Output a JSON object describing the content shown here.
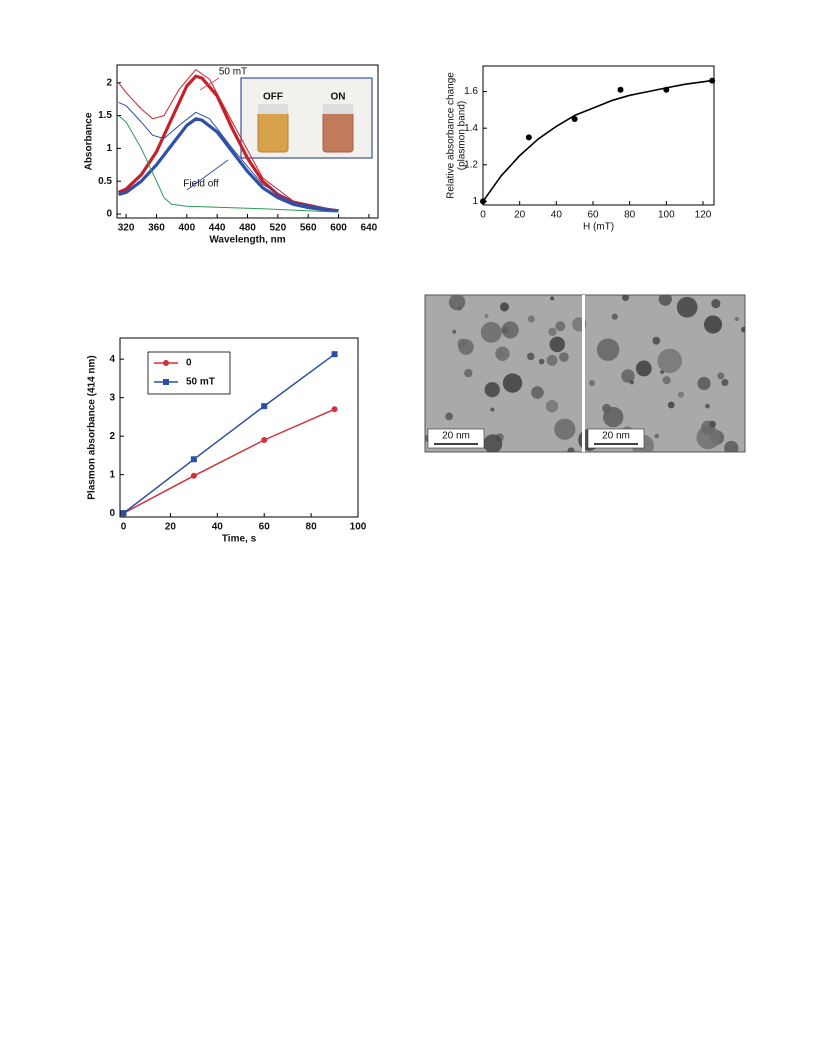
{
  "chart_data": [
    {
      "type": "line",
      "xlabel": "Wavelength, nm",
      "ylabel": "Absorbance",
      "xlim": [
        308,
        652
      ],
      "ylim": [
        -0.06,
        2.27
      ],
      "xticks": [
        320,
        360,
        400,
        440,
        480,
        520,
        560,
        600,
        640
      ],
      "yticks": [
        0,
        0.5,
        1,
        1.5,
        2
      ],
      "annotations": [
        "50 mT",
        "Field off"
      ],
      "inset_labels": [
        "OFF",
        "ON"
      ],
      "series": [
        {
          "color": "#c8202a",
          "width": 3.2,
          "x": [
            310,
            320,
            340,
            360,
            380,
            400,
            412,
            420,
            440,
            460,
            480,
            500,
            520,
            540,
            560,
            580,
            600
          ],
          "values": [
            0.33,
            0.38,
            0.6,
            0.95,
            1.45,
            1.95,
            2.1,
            2.07,
            1.8,
            1.3,
            0.85,
            0.5,
            0.3,
            0.18,
            0.12,
            0.08,
            0.05
          ]
        },
        {
          "color": "#2f4fa8",
          "width": 3.2,
          "x": [
            310,
            320,
            340,
            360,
            380,
            400,
            412,
            420,
            440,
            460,
            480,
            500,
            520,
            540,
            560,
            580,
            600
          ],
          "values": [
            0.3,
            0.33,
            0.5,
            0.75,
            1.05,
            1.35,
            1.45,
            1.43,
            1.25,
            0.95,
            0.65,
            0.4,
            0.25,
            0.15,
            0.1,
            0.07,
            0.05
          ]
        },
        {
          "color": "#c8202a",
          "width": 1,
          "x": [
            310,
            320,
            340,
            355,
            370,
            390,
            412,
            430,
            460,
            500,
            540,
            600
          ],
          "values": [
            2.0,
            1.85,
            1.6,
            1.45,
            1.5,
            1.9,
            2.2,
            2.05,
            1.4,
            0.55,
            0.2,
            0.05
          ]
        },
        {
          "color": "#2f4fa8",
          "width": 1,
          "x": [
            310,
            320,
            340,
            355,
            370,
            390,
            412,
            430,
            460,
            500,
            540,
            600
          ],
          "values": [
            1.7,
            1.65,
            1.4,
            1.2,
            1.15,
            1.35,
            1.55,
            1.45,
            1.0,
            0.45,
            0.18,
            0.05
          ]
        },
        {
          "color": "#2a9a55",
          "width": 1,
          "x": [
            310,
            320,
            340,
            360,
            370,
            380,
            400,
            450,
            500,
            600
          ],
          "values": [
            1.5,
            1.4,
            1.0,
            0.5,
            0.25,
            0.15,
            0.12,
            0.1,
            0.08,
            0.03
          ]
        }
      ]
    },
    {
      "type": "scatter",
      "xlabel": "H (mT)",
      "ylabel": [
        "Relative absorbance change",
        "(plasmon band)"
      ],
      "xlim": [
        0,
        126
      ],
      "ylim": [
        0.98,
        1.74
      ],
      "xticks": [
        0,
        20,
        40,
        60,
        80,
        100,
        120
      ],
      "yticks": [
        1,
        1.2,
        1.4,
        1.6
      ],
      "series": [
        {
          "color": "#000000",
          "style": "markers",
          "marker": "circle",
          "x": [
            0,
            25,
            50,
            75,
            100,
            125
          ],
          "values": [
            1,
            1.35,
            1.45,
            1.61,
            1.61,
            1.66
          ]
        },
        {
          "color": "#000000",
          "style": "line",
          "width": 1.6,
          "x": [
            0,
            10,
            20,
            30,
            40,
            50,
            60,
            70,
            80,
            90,
            100,
            110,
            125
          ],
          "values": [
            1,
            1.14,
            1.25,
            1.34,
            1.41,
            1.47,
            1.51,
            1.55,
            1.58,
            1.6,
            1.62,
            1.64,
            1.66
          ]
        }
      ]
    },
    {
      "type": "line",
      "xlabel": "Time, s",
      "ylabel": "Plasmon absorbance (414 nm)",
      "xlim": [
        -1.5,
        100
      ],
      "ylim": [
        -0.1,
        4.55
      ],
      "xticks": [
        0,
        20,
        40,
        60,
        80,
        100
      ],
      "yticks": [
        0,
        1,
        2,
        3,
        4
      ],
      "legend": "upper left",
      "series": [
        {
          "name": "0",
          "color": "#d0323c",
          "width": 1.5,
          "marker": "circle",
          "x": [
            0,
            30,
            60,
            90
          ],
          "values": [
            0,
            0.97,
            1.9,
            2.7
          ]
        },
        {
          "name": "50 mT",
          "color": "#2c4fa3",
          "width": 1.5,
          "marker": "square",
          "x": [
            0,
            30,
            60,
            90
          ],
          "values": [
            0,
            1.4,
            2.78,
            4.13
          ]
        }
      ]
    }
  ],
  "micrograph": {
    "scale_bars": [
      "20 nm",
      "20 nm"
    ]
  }
}
